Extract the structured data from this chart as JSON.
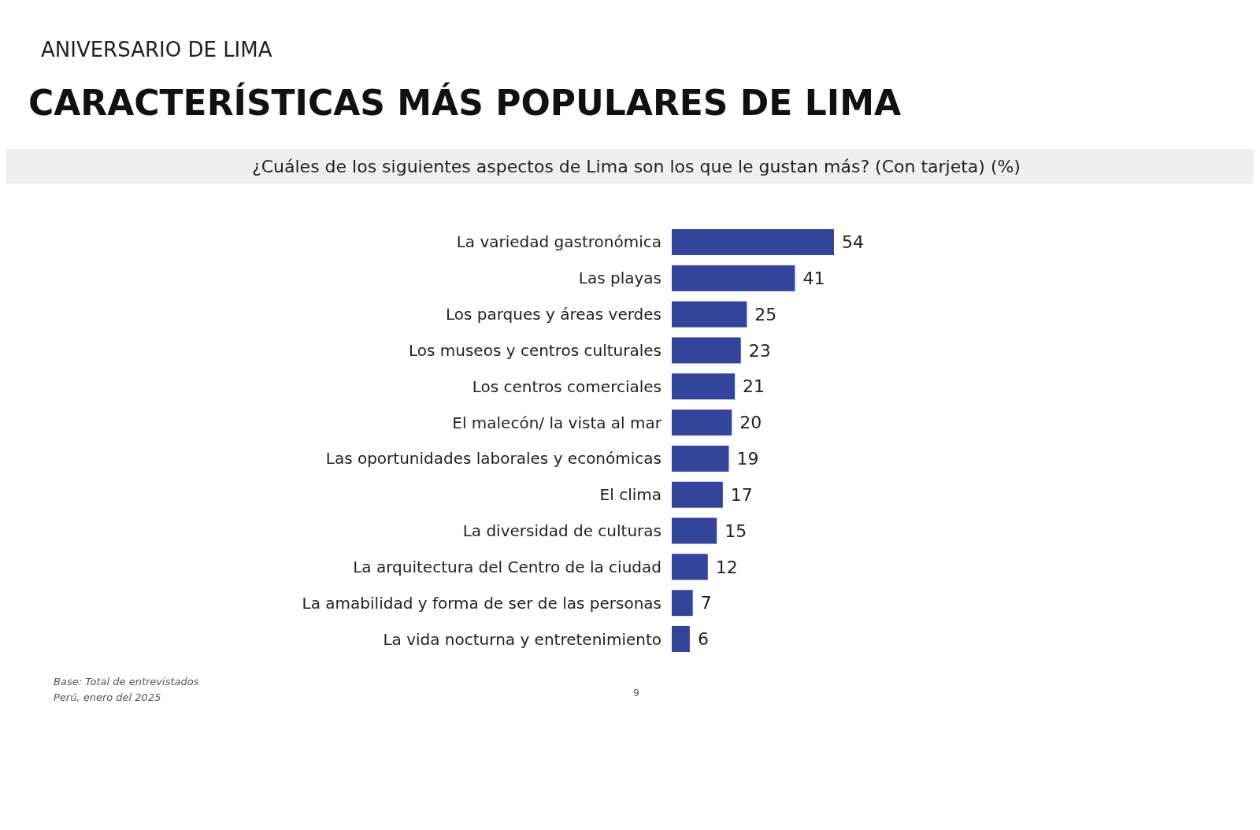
{
  "chart_data": {
    "type": "bar",
    "orientation": "horizontal",
    "title": "CARACTERÍSTICAS MÁS POPULARES DE LIMA",
    "subtitle": "¿Cuáles de los siguientes aspectos de Lima son los que le gustan más? (Con tarjeta) (%)",
    "categories": [
      "La variedad gastronómica",
      "Las playas",
      "Los parques y áreas verdes",
      "Los museos y centros culturales",
      "Los centros comerciales",
      "El malecón/ la vista al mar",
      "Las oportunidades laborales y económicas",
      "El clima",
      "La diversidad de culturas",
      "La arquitectura del Centro de la ciudad",
      "La amabilidad y forma de ser de las personas",
      "La vida nocturna y entretenimiento"
    ],
    "values": [
      54,
      41,
      25,
      23,
      21,
      20,
      19,
      17,
      15,
      12,
      7,
      6
    ],
    "color": "#34449a",
    "data_labels": true,
    "annotations": [
      "ANIVERSARIO DE LIMA",
      "Base: Total de entrevistados",
      "Perú, enero del 2025",
      "9"
    ]
  }
}
